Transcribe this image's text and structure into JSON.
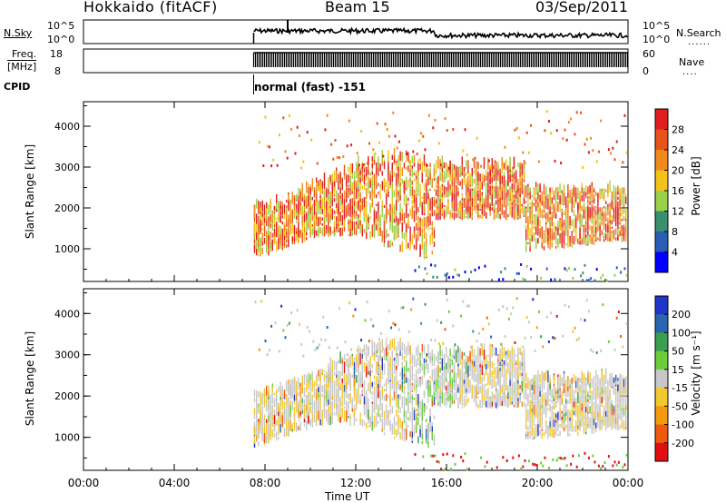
{
  "header": {
    "station": "Hokkaido (fitACF)",
    "beam": "Beam 15",
    "date": "03/Sep/2011"
  },
  "noise_panel": {
    "left_label": "N.Sky",
    "right_label": "N.Search",
    "left_ticks": [
      "10^5",
      "10^0"
    ],
    "right_ticks": [
      "10^5",
      "10^0"
    ]
  },
  "freq_panel": {
    "left_label_top": "Freq.",
    "left_label_bottom": "[MHz]",
    "left_ticks": [
      "18",
      "8"
    ],
    "right_label": "Nave",
    "right_ticks": [
      "60",
      "0"
    ]
  },
  "cpid": {
    "label": "CPID",
    "mode": "normal (fast) -151"
  },
  "colors": {
    "power_scale": [
      "#0000ff",
      "#2a5db4",
      "#3a8f6f",
      "#9bd04a",
      "#f2c21a",
      "#f08a1c",
      "#e8531a",
      "#e01e1e"
    ],
    "velocity_scale": [
      "#e01010",
      "#f05a10",
      "#f39a10",
      "#f2c830",
      "#c8c8c8",
      "#6ccd3a",
      "#3aa050",
      "#2a66b0",
      "#2036c8"
    ],
    "ground_scatter": "#bdbdbd"
  },
  "chart_data": [
    {
      "type": "heatmap",
      "title": "Power",
      "ylabel": "Slant Range [km]",
      "ylim": [
        200,
        4600
      ],
      "yticks": [
        "1000",
        "2000",
        "3000",
        "4000"
      ],
      "colorbar_label": "Power [dB]",
      "colorbar_ticks": [
        "4",
        "8",
        "12",
        "16",
        "20",
        "24",
        "28"
      ],
      "colorbar_range": [
        0,
        30
      ]
    },
    {
      "type": "heatmap",
      "title": "Velocity",
      "ylabel": "Slant Range [km]",
      "ylim": [
        200,
        4600
      ],
      "yticks": [
        "1000",
        "2000",
        "3000",
        "4000"
      ],
      "colorbar_label": "Velocity [m s⁻¹]",
      "colorbar_ticks": [
        "200",
        "100",
        "50",
        "15",
        "-15",
        "-50",
        "-100",
        "-200"
      ]
    }
  ],
  "time_axis": {
    "xlabel": "Time UT",
    "ticks": [
      "00:00",
      "04:00",
      "08:00",
      "12:00",
      "16:00",
      "20:00",
      "00:00"
    ],
    "xlim_hours": [
      0,
      24
    ],
    "data_start_hour": 7.5
  }
}
